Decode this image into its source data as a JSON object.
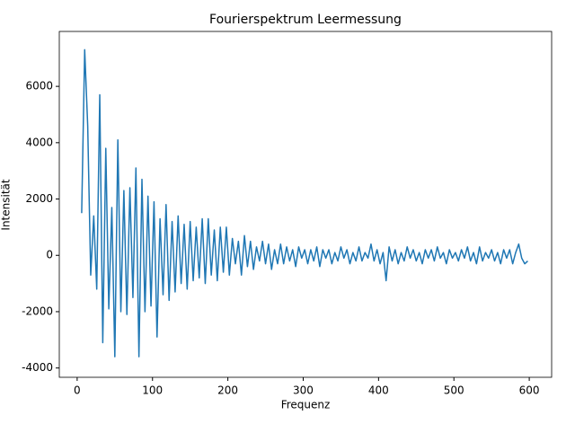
{
  "chart_data": {
    "type": "line",
    "title": "Fourierspektrum Leermessung",
    "x_label": "Frequenz",
    "y_label": "Intensität",
    "x": [
      6,
      10,
      14,
      18,
      22,
      26,
      30,
      34,
      38,
      42,
      46,
      50,
      54,
      58,
      62,
      66,
      70,
      74,
      78,
      82,
      86,
      90,
      94,
      98,
      102,
      106,
      110,
      114,
      118,
      122,
      126,
      130,
      134,
      138,
      142,
      146,
      150,
      154,
      158,
      162,
      166,
      170,
      174,
      178,
      182,
      186,
      190,
      194,
      198,
      202,
      206,
      210,
      214,
      218,
      222,
      226,
      230,
      234,
      238,
      242,
      246,
      250,
      254,
      258,
      262,
      266,
      270,
      274,
      278,
      282,
      286,
      290,
      294,
      298,
      302,
      306,
      310,
      314,
      318,
      322,
      326,
      330,
      334,
      338,
      342,
      346,
      350,
      354,
      358,
      362,
      366,
      370,
      374,
      378,
      382,
      386,
      390,
      394,
      398,
      402,
      406,
      410,
      414,
      418,
      422,
      426,
      430,
      434,
      438,
      442,
      446,
      450,
      454,
      458,
      462,
      466,
      470,
      474,
      478,
      482,
      486,
      490,
      494,
      498,
      502,
      506,
      510,
      514,
      518,
      522,
      526,
      530,
      534,
      538,
      542,
      546,
      550,
      554,
      558,
      562,
      566,
      570,
      574,
      578,
      582,
      586,
      590,
      594,
      598
    ],
    "series": [
      {
        "name": "Intensität",
        "color": "#1f77b4",
        "values": [
          1500,
          7300,
          4600,
          -700,
          1400,
          -1200,
          5700,
          -3100,
          3800,
          -1900,
          1700,
          -3600,
          4100,
          -2000,
          2300,
          -2100,
          2400,
          -1500,
          3100,
          -3600,
          2700,
          -2000,
          2100,
          -1800,
          1900,
          -2900,
          1300,
          -1400,
          1800,
          -1600,
          1200,
          -1300,
          1400,
          -1000,
          1100,
          -1200,
          1200,
          -900,
          1000,
          -800,
          1300,
          -1000,
          1300,
          -700,
          900,
          -900,
          1000,
          -600,
          1000,
          -700,
          600,
          -300,
          500,
          -700,
          700,
          -400,
          500,
          -500,
          300,
          -200,
          500,
          -300,
          400,
          -500,
          200,
          -300,
          400,
          -300,
          300,
          -200,
          200,
          -400,
          300,
          -100,
          200,
          -300,
          200,
          -200,
          300,
          -400,
          200,
          -100,
          200,
          -300,
          100,
          -200,
          300,
          -100,
          200,
          -300,
          100,
          -200,
          300,
          -200,
          100,
          -100,
          400,
          -200,
          200,
          -300,
          100,
          -900,
          300,
          -200,
          200,
          -300,
          100,
          -200,
          300,
          -100,
          200,
          -200,
          100,
          -300,
          200,
          -100,
          200,
          -200,
          300,
          -100,
          100,
          -300,
          200,
          -100,
          100,
          -200,
          200,
          -100,
          300,
          -200,
          100,
          -300,
          300,
          -200,
          100,
          -100,
          200,
          -200,
          100,
          -300,
          200,
          -100,
          200,
          -300,
          100,
          400,
          -100,
          -300,
          -200
        ]
      }
    ],
    "xlim": [
      -23.7,
      629.7
    ],
    "ylim": [
      -4330,
      7950
    ],
    "xticks": [
      0,
      100,
      200,
      300,
      400,
      500,
      600
    ],
    "yticks": [
      -4000,
      -2000,
      0,
      2000,
      4000,
      6000
    ]
  }
}
